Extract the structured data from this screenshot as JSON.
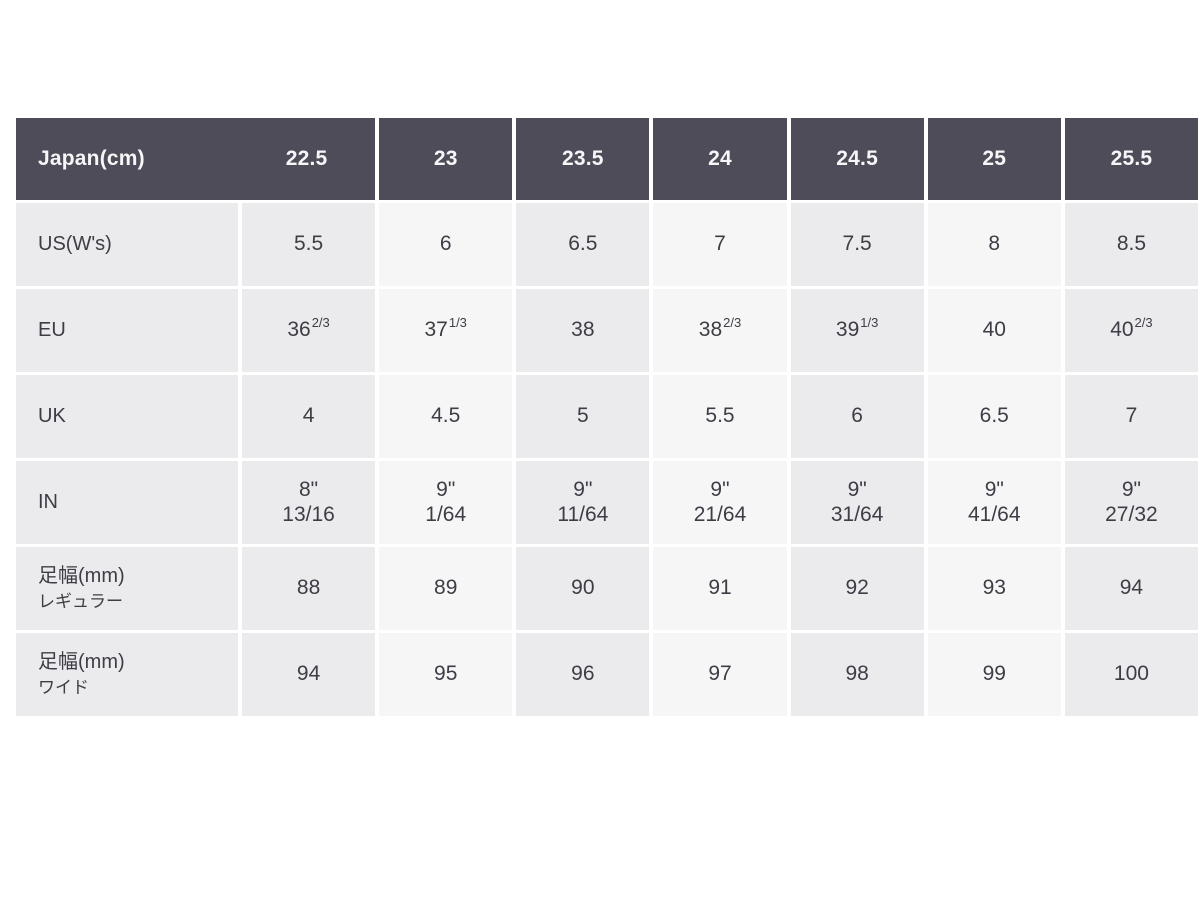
{
  "colors": {
    "header_bg": "#4E4C58",
    "header_text": "#F7F5F7",
    "cell_shaded": "#EBEAEC",
    "cell_light": "#F7F6F7",
    "body_text": "#3E3D46",
    "page_bg": "#FFFFFF"
  },
  "chart_data": {
    "type": "table",
    "corner_label": "Japan(cm)",
    "columns": [
      "22.5",
      "23",
      "23.5",
      "24",
      "24.5",
      "25",
      "25.5"
    ],
    "rows": [
      {
        "label": "US(W's)",
        "values": [
          "5.5",
          "6",
          "6.5",
          "7",
          "7.5",
          "8",
          "8.5"
        ]
      },
      {
        "label": "EU",
        "values": [
          "36^2/3",
          "37^1/3",
          "38",
          "38^2/3",
          "39^1/3",
          "40",
          "40^2/3"
        ]
      },
      {
        "label": "UK",
        "values": [
          "4",
          "4.5",
          "5",
          "5.5",
          "6",
          "6.5",
          "7"
        ]
      },
      {
        "label": "IN",
        "values": [
          "8\"\n13/16",
          "9\"\n1/64",
          "9\"\n11/64",
          "9\"\n21/64",
          "9\"\n31/64",
          "9\"\n41/64",
          "9\"\n27/32"
        ]
      },
      {
        "label": "足幅(mm)\nレギュラー",
        "values": [
          "88",
          "89",
          "90",
          "91",
          "92",
          "93",
          "94"
        ]
      },
      {
        "label": "足幅(mm)\nワイド",
        "values": [
          "94",
          "95",
          "96",
          "97",
          "98",
          "99",
          "100"
        ]
      }
    ]
  }
}
